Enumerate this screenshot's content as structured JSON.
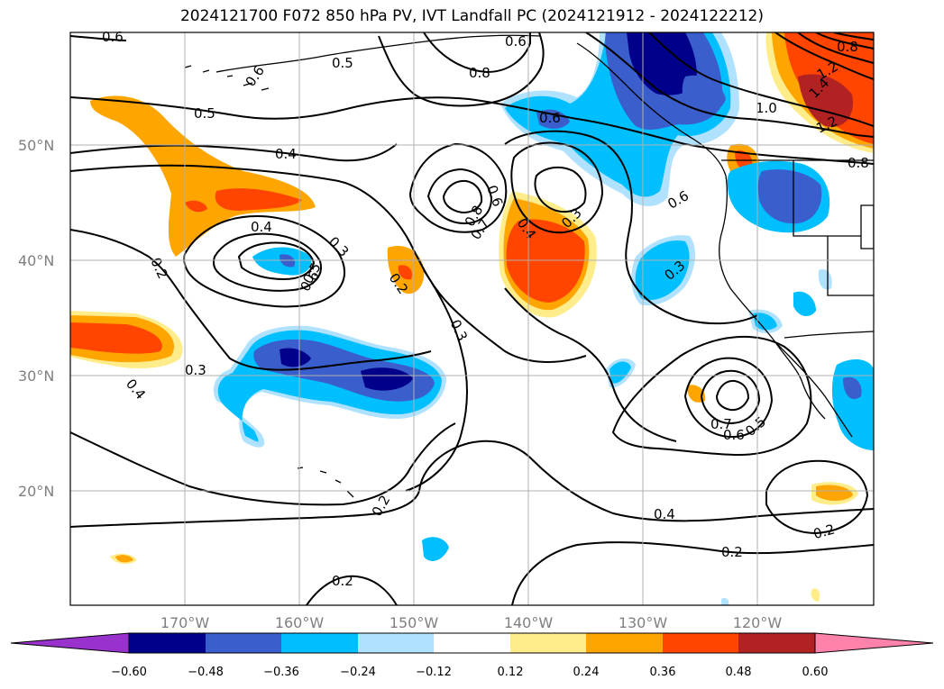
{
  "title": "2024121700 F072 850 hPa PV, IVT Landfall PC (2024121912 - 2024122212)",
  "lat_labels": [
    "50°N",
    "40°N",
    "30°N",
    "20°N"
  ],
  "lon_labels": [
    "170°W",
    "160°W",
    "150°W",
    "140°W",
    "130°W",
    "120°W"
  ],
  "colorbar": {
    "ticks": [
      "−0.60",
      "−0.48",
      "−0.36",
      "−0.24",
      "−0.12",
      "0.12",
      "0.24",
      "0.36",
      "0.48",
      "0.60"
    ],
    "colors": [
      "#9932cc",
      "#00008b",
      "#3a5fcd",
      "#00bfff",
      "#b0e2ff",
      "#ffffff",
      "#ffec8b",
      "#ffa500",
      "#ff4500",
      "#b22222",
      "#ff82ab"
    ]
  },
  "contour_labels": [
    {
      "text": "0.6"
    },
    {
      "text": "0.6"
    },
    {
      "text": "0.5"
    },
    {
      "text": "0.6"
    },
    {
      "text": "0.8"
    },
    {
      "text": "0.5"
    },
    {
      "text": "0.6"
    },
    {
      "text": "1.0"
    },
    {
      "text": "1.2"
    },
    {
      "text": "1.4"
    },
    {
      "text": "1.2"
    },
    {
      "text": "0.8"
    },
    {
      "text": "0.8"
    },
    {
      "text": "0.4"
    },
    {
      "text": "0.6"
    },
    {
      "text": "0.4"
    },
    {
      "text": "0.8"
    },
    {
      "text": "0.7"
    },
    {
      "text": "0.6"
    },
    {
      "text": "0.4"
    },
    {
      "text": "0.3"
    },
    {
      "text": "0.6"
    },
    {
      "text": "0.3"
    },
    {
      "text": "0.5"
    },
    {
      "text": "0.2"
    },
    {
      "text": "0.2"
    },
    {
      "text": "0.3"
    },
    {
      "text": "0.3"
    },
    {
      "text": "0.3"
    },
    {
      "text": "0.4"
    },
    {
      "text": "0.7"
    },
    {
      "text": "0.6"
    },
    {
      "text": "0.5"
    },
    {
      "text": "0.2"
    },
    {
      "text": "0.4"
    },
    {
      "text": "0.2"
    },
    {
      "text": "0.2"
    },
    {
      "text": "0.2"
    }
  ]
}
